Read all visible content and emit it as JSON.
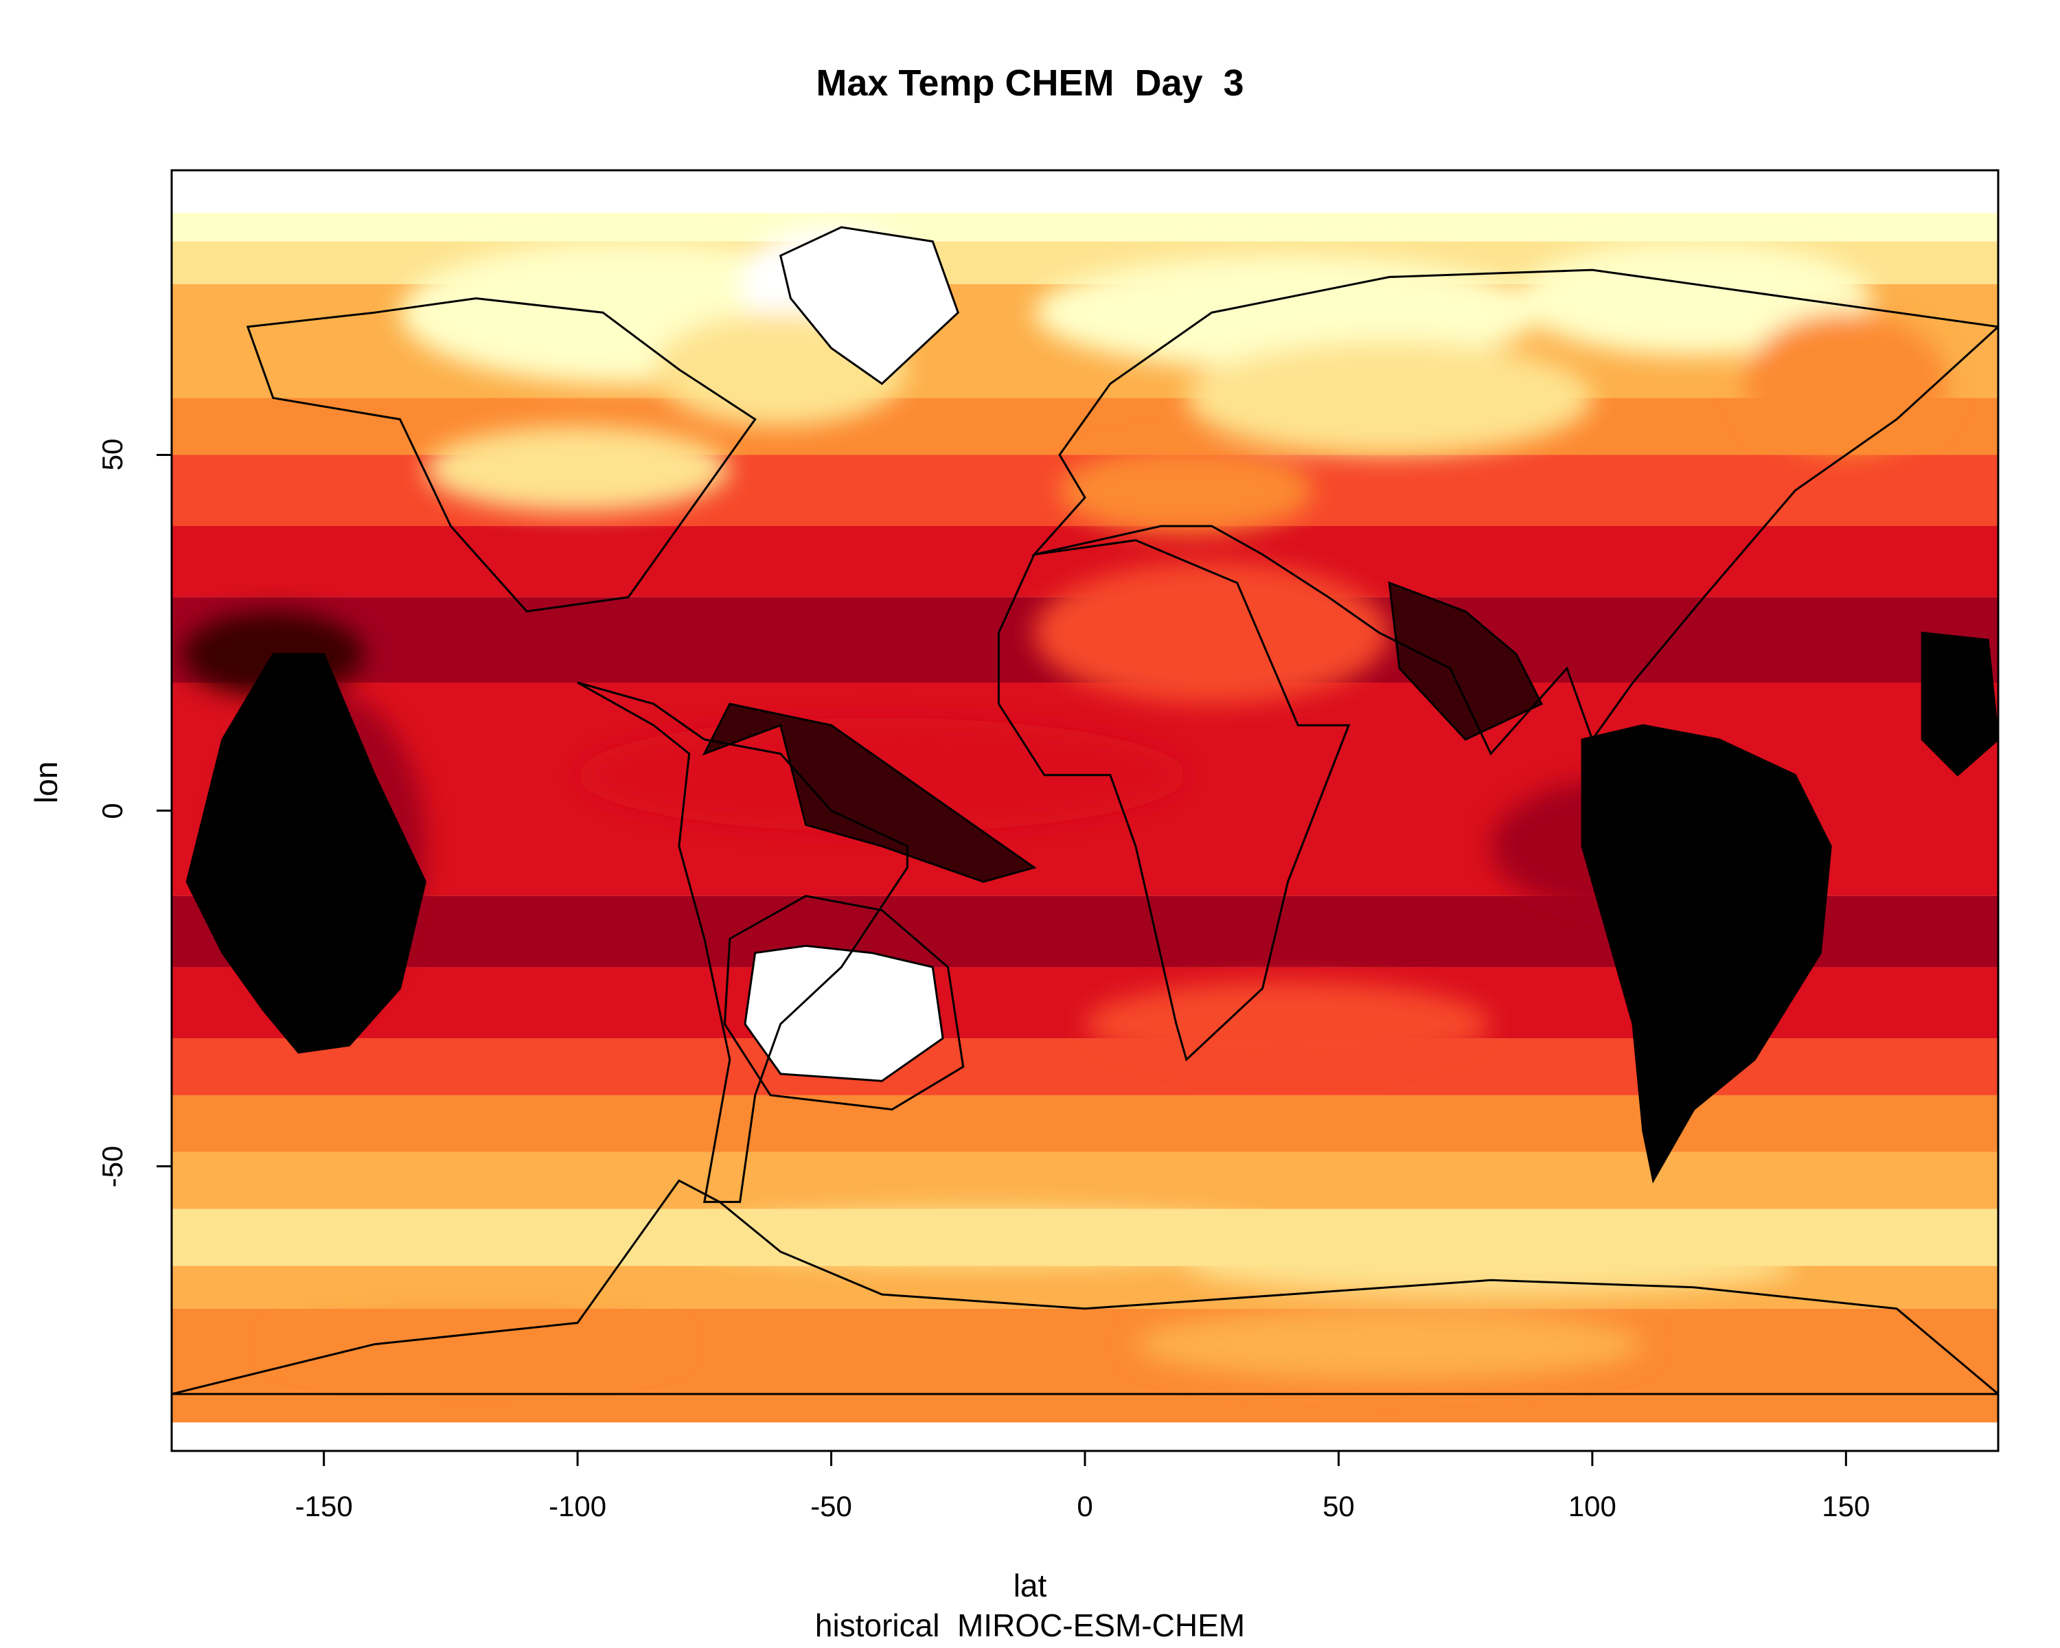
{
  "chart_data": {
    "type": "heatmap",
    "title": "Max Temp CHEM  Day  3",
    "subtitle": "historical  MIROC-ESM-CHEM",
    "xlabel": "lat",
    "ylabel": "lon",
    "xlim": [
      -180,
      180
    ],
    "ylim": [
      -90,
      90
    ],
    "x_ticks": [
      "-150",
      "-100",
      "-50",
      "0",
      "50",
      "100",
      "150"
    ],
    "y_ticks": [
      "50",
      "0",
      "-50"
    ],
    "palette": [
      "#ffffff",
      "#ffffc8",
      "#fee38f",
      "#fdb04b",
      "#fc8a32",
      "#f6482a",
      "#db0f1d",
      "#a3001e",
      "#3b0005",
      "#000000"
    ],
    "legend": "none",
    "grid": false
  }
}
